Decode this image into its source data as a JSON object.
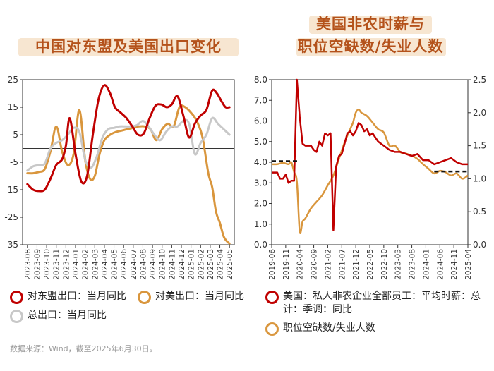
{
  "source_note": "数据来源：Wind，截至2025年6月30日。",
  "chart_data": [
    {
      "type": "line",
      "title": "中国对东盟及美国出口变化",
      "xlabel": "",
      "ylabel": "",
      "ylim": [
        -35,
        25
      ],
      "yticks": [
        25,
        15,
        5,
        -5,
        -15,
        -25,
        -35
      ],
      "x_tick_labels": [
        "2023-08",
        "2023-09",
        "2023-10",
        "2023-11",
        "2023-12",
        "2024-01",
        "2024-02",
        "2024-03",
        "2024-04",
        "2024-05",
        "2024-06",
        "2024-07",
        "2024-08",
        "2024-09",
        "2024-10",
        "2024-11",
        "2024-12",
        "2025-01",
        "2025-02",
        "2025-03",
        "2025-04",
        "2025-05"
      ],
      "series": [
        {
          "name": "对东盟出口：当月同比",
          "color": "#c00000",
          "x": [
            0,
            0.6,
            1.2,
            1.8,
            2.4,
            3.0,
            3.6,
            4.0,
            4.4,
            5.0,
            5.6,
            6.2,
            6.8,
            7.4,
            8.0,
            8.6,
            9.1,
            9.7,
            10.3,
            10.9,
            11.5,
            12.1,
            12.7,
            13.3,
            13.9,
            14.5,
            15.0,
            15.6,
            16.2,
            16.8,
            17.4,
            18.0,
            18.6,
            19.2,
            19.7,
            20.2,
            20.6,
            21.0
          ],
          "y": [
            -13,
            -15,
            -15.5,
            -15,
            -11,
            -6,
            -4,
            1,
            11,
            -2,
            -12,
            -10,
            5,
            18,
            23,
            20,
            15,
            13,
            11,
            8,
            5,
            5.5,
            11,
            15.5,
            16,
            15,
            16,
            19,
            12,
            4,
            9,
            12,
            14,
            21,
            20,
            17,
            15,
            15
          ]
        },
        {
          "name": "对美出口：当月同比",
          "color": "#d9963d",
          "x": [
            0,
            0.6,
            1.2,
            1.8,
            2.4,
            3.0,
            3.6,
            4.2,
            4.8,
            5.4,
            6.0,
            6.5,
            7.0,
            7.5,
            8.0,
            8.6,
            9.2,
            9.8,
            10.4,
            11.0,
            11.6,
            12.2,
            12.8,
            13.4,
            14.0,
            14.6,
            15.2,
            15.8,
            16.4,
            17.0,
            17.6,
            18.2,
            18.8,
            19.2,
            19.6,
            20.0,
            20.4,
            20.8,
            21.0
          ],
          "y": [
            -9,
            -9,
            -8.5,
            -7.5,
            -1,
            8,
            -1,
            -6,
            -2,
            14,
            -4,
            -11,
            -10,
            -2,
            3,
            5,
            6,
            6.5,
            7,
            7.5,
            8,
            8,
            7,
            3,
            7,
            9,
            8,
            15,
            15,
            13,
            10,
            4,
            -9,
            -14,
            -23,
            -27,
            -32,
            -34,
            -34.5
          ]
        },
        {
          "name": "总出口：当月同比",
          "color": "#c8c8c8",
          "x": [
            0,
            0.6,
            1.2,
            1.8,
            2.4,
            3.0,
            3.6,
            4.2,
            4.8,
            5.4,
            6.0,
            6.6,
            7.2,
            7.8,
            8.4,
            9.0,
            9.6,
            10.2,
            10.8,
            11.4,
            12.0,
            12.6,
            13.2,
            13.8,
            14.4,
            15.0,
            15.6,
            16.2,
            16.8,
            17.4,
            18.0,
            18.6,
            19.2,
            19.8,
            20.4,
            21.0
          ],
          "y": [
            -8,
            -6.5,
            -6,
            -5.5,
            0,
            2,
            3,
            5,
            7.5,
            6,
            -4,
            -7,
            -3,
            4,
            7,
            7.5,
            8,
            8,
            8,
            8.5,
            10,
            8,
            5,
            3,
            6,
            8,
            8,
            10,
            9,
            -2,
            2,
            5,
            11,
            9,
            7,
            5
          ]
        }
      ]
    },
    {
      "type": "line",
      "title_lines": [
        "美国非农时薪与",
        "职位空缺数/失业人数"
      ],
      "ylim_left": [
        0,
        8
      ],
      "yticks_left": [
        "8.0",
        "7.0",
        "6.0",
        "5.0",
        "4.0",
        "3.0",
        "2.0",
        "1.0",
        "0.0"
      ],
      "ylim_right": [
        0,
        2.5
      ],
      "yticks_right": [
        "2.5",
        "2.0",
        "1.5",
        "1.0",
        "0.5",
        "0.0"
      ],
      "x_tick_labels": [
        "2019-06",
        "2019-11",
        "2020-04",
        "2020-09",
        "2021-02",
        "2021-07",
        "2021-12",
        "2022-05",
        "2022-10",
        "2023-03",
        "2023-08",
        "2024-01",
        "2024-06",
        "2024-11",
        "2025-04"
      ],
      "reference_lines": [
        {
          "axis": "left",
          "y": 4.05,
          "x_from": 0,
          "x_to": 10
        },
        {
          "axis": "left",
          "y": 3.55,
          "x_from": 58,
          "x_to": 70
        }
      ],
      "series": [
        {
          "name": "美国：私人非农企业全部员工：平均时薪：总计：季调：同比",
          "axis": "left",
          "color": "#c00000",
          "x": [
            0,
            2,
            3,
            4,
            5,
            6,
            7,
            8,
            9,
            10,
            11,
            12,
            13,
            14,
            15,
            16,
            17,
            18,
            19,
            20,
            21,
            22,
            23,
            24,
            25,
            26,
            27,
            28,
            29,
            30,
            31,
            32,
            33,
            34,
            35,
            36,
            37,
            38,
            39,
            40,
            42,
            44,
            46,
            48,
            50,
            52,
            54,
            56,
            58,
            60,
            62,
            64,
            66,
            68,
            70
          ],
          "y": [
            3.5,
            3.5,
            3.2,
            3.2,
            3.4,
            3.0,
            3.1,
            3.1,
            8.0,
            6.2,
            4.9,
            4.8,
            4.8,
            4.8,
            4.6,
            4.5,
            5.0,
            4.8,
            5.4,
            5.3,
            5.4,
            0.7,
            3.8,
            4.3,
            4.4,
            4.9,
            5.4,
            5.5,
            5.3,
            5.5,
            5.9,
            5.8,
            5.5,
            5.6,
            5.3,
            5.4,
            5.2,
            5.0,
            4.9,
            4.8,
            4.6,
            4.5,
            4.5,
            4.4,
            4.3,
            4.4,
            4.1,
            4.1,
            3.9,
            4.0,
            4.1,
            4.2,
            4.0,
            3.9,
            3.9
          ]
        },
        {
          "name": "职位空缺数/失业人数",
          "axis": "right",
          "color": "#d9963d",
          "x": [
            0,
            2,
            4,
            6,
            7,
            8,
            9,
            10,
            11,
            12,
            14,
            16,
            18,
            20,
            22,
            24,
            26,
            28,
            29,
            30,
            31,
            32,
            34,
            36,
            38,
            40,
            42,
            44,
            46,
            48,
            50,
            52,
            54,
            56,
            58,
            60,
            62,
            64,
            66,
            68,
            70
          ],
          "y": [
            1.22,
            1.22,
            1.24,
            1.22,
            1.25,
            1.1,
            0.95,
            0.2,
            0.35,
            0.4,
            0.55,
            0.65,
            0.75,
            0.9,
            1.05,
            1.3,
            1.55,
            1.75,
            1.85,
            2.0,
            2.05,
            2.0,
            1.95,
            1.85,
            1.75,
            1.7,
            1.5,
            1.5,
            1.4,
            1.38,
            1.35,
            1.3,
            1.22,
            1.15,
            1.08,
            1.12,
            1.1,
            1.05,
            1.08,
            1.0,
            1.05
          ]
        }
      ]
    }
  ]
}
